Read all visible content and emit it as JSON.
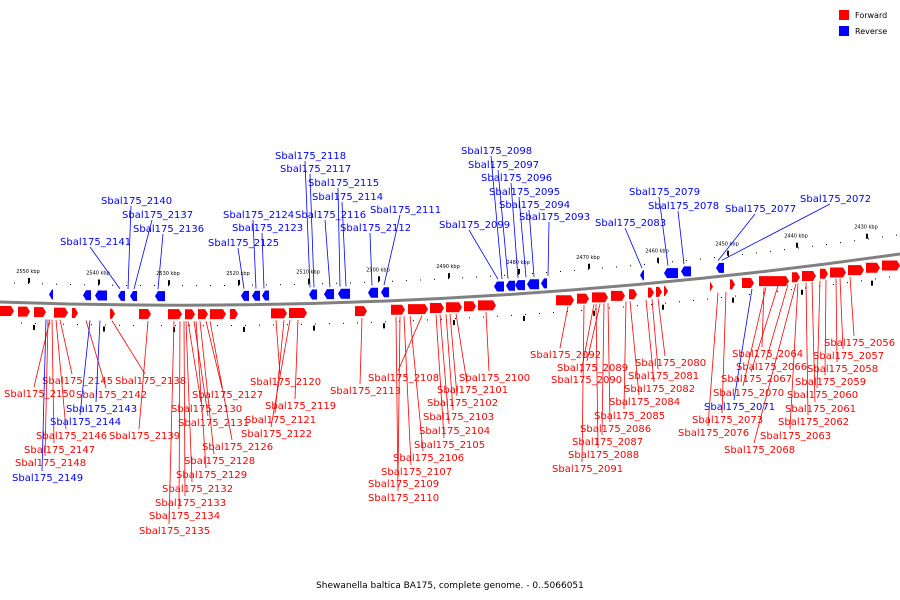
{
  "caption": "Shewanella baltica BA175, complete genome. - 0..5066051",
  "legend": {
    "forward": {
      "label": "Forward",
      "color": "#ff0000"
    },
    "reverse": {
      "label": "Reverse",
      "color": "#0000ff"
    }
  },
  "colors": {
    "forward": "#ff0000",
    "reverse": "#0000ff",
    "backbone": "#808080"
  },
  "ticks": [
    {
      "label": "2550 kbp"
    },
    {
      "label": "2540 kbp"
    },
    {
      "label": "2530 kbp"
    },
    {
      "label": "2520 kbp"
    },
    {
      "label": "2510 kbp"
    },
    {
      "label": "2500 kbp"
    },
    {
      "label": "2490 kbp"
    },
    {
      "label": "2480 kbp"
    },
    {
      "label": "2470 kbp"
    },
    {
      "label": "2460 kbp"
    },
    {
      "label": "2450 kbp"
    },
    {
      "label": "2440 kbp"
    },
    {
      "label": "2430 kbp"
    }
  ],
  "reverse_genes": [
    {
      "name": "Sbal175_2141"
    },
    {
      "name": "Sbal175_2140"
    },
    {
      "name": "Sbal175_2137"
    },
    {
      "name": "Sbal175_2136"
    },
    {
      "name": "Sbal175_2125"
    },
    {
      "name": "Sbal175_2124"
    },
    {
      "name": "Sbal175_2123"
    },
    {
      "name": "Sbal175_2118"
    },
    {
      "name": "Sbal175_2117"
    },
    {
      "name": "Sbal175_2116"
    },
    {
      "name": "Sbal175_2115"
    },
    {
      "name": "Sbal175_2114"
    },
    {
      "name": "Sbal175_2112"
    },
    {
      "name": "Sbal175_2111"
    },
    {
      "name": "Sbal175_2099"
    },
    {
      "name": "Sbal175_2098"
    },
    {
      "name": "Sbal175_2097"
    },
    {
      "name": "Sbal175_2096"
    },
    {
      "name": "Sbal175_2095"
    },
    {
      "name": "Sbal175_2094"
    },
    {
      "name": "Sbal175_2093"
    },
    {
      "name": "Sbal175_2083"
    },
    {
      "name": "Sbal175_2079"
    },
    {
      "name": "Sbal175_2078"
    },
    {
      "name": "Sbal175_2077"
    },
    {
      "name": "Sbal175_2072"
    }
  ],
  "forward_genes": [
    {
      "name": "Sbal175_2145",
      "strand": "forward"
    },
    {
      "name": "Sbal175_2150",
      "strand": "forward"
    },
    {
      "name": "Sbal175_2142",
      "strand": "forward"
    },
    {
      "name": "Sbal175_2143",
      "strand": "reverse"
    },
    {
      "name": "Sbal175_2144",
      "strand": "reverse"
    },
    {
      "name": "Sbal175_2146",
      "strand": "forward"
    },
    {
      "name": "Sbal175_2147",
      "strand": "forward"
    },
    {
      "name": "Sbal175_2148",
      "strand": "forward"
    },
    {
      "name": "Sbal175_2149",
      "strand": "reverse"
    },
    {
      "name": "Sbal175_2138",
      "strand": "forward"
    },
    {
      "name": "Sbal175_2139",
      "strand": "forward"
    },
    {
      "name": "Sbal175_2127",
      "strand": "forward"
    },
    {
      "name": "Sbal175_2130",
      "strand": "forward"
    },
    {
      "name": "Sbal175_2131",
      "strand": "forward"
    },
    {
      "name": "Sbal175_2126",
      "strand": "forward"
    },
    {
      "name": "Sbal175_2128",
      "strand": "forward"
    },
    {
      "name": "Sbal175_2129",
      "strand": "forward"
    },
    {
      "name": "Sbal175_2132",
      "strand": "forward"
    },
    {
      "name": "Sbal175_2133",
      "strand": "forward"
    },
    {
      "name": "Sbal175_2134",
      "strand": "forward"
    },
    {
      "name": "Sbal175_2135",
      "strand": "forward"
    },
    {
      "name": "Sbal175_2120",
      "strand": "forward"
    },
    {
      "name": "Sbal175_2119",
      "strand": "forward"
    },
    {
      "name": "Sbal175_2121",
      "strand": "forward"
    },
    {
      "name": "Sbal175_2122",
      "strand": "forward"
    },
    {
      "name": "Sbal175_2113",
      "strand": "forward"
    },
    {
      "name": "Sbal175_2108",
      "strand": "forward"
    },
    {
      "name": "Sbal175_2106",
      "strand": "forward"
    },
    {
      "name": "Sbal175_2107",
      "strand": "forward"
    },
    {
      "name": "Sbal175_2109",
      "strand": "forward"
    },
    {
      "name": "Sbal175_2110",
      "strand": "forward"
    },
    {
      "name": "Sbal175_2101",
      "strand": "forward"
    },
    {
      "name": "Sbal175_2102",
      "strand": "forward"
    },
    {
      "name": "Sbal175_2103",
      "strand": "forward"
    },
    {
      "name": "Sbal175_2104",
      "strand": "forward"
    },
    {
      "name": "Sbal175_2105",
      "strand": "forward"
    },
    {
      "name": "Sbal175_2100",
      "strand": "forward"
    },
    {
      "name": "Sbal175_2092",
      "strand": "forward"
    },
    {
      "name": "Sbal175_2089",
      "strand": "forward"
    },
    {
      "name": "Sbal175_2090",
      "strand": "forward"
    },
    {
      "name": "Sbal175_2085",
      "strand": "forward"
    },
    {
      "name": "Sbal175_2086",
      "strand": "forward"
    },
    {
      "name": "Sbal175_2087",
      "strand": "forward"
    },
    {
      "name": "Sbal175_2088",
      "strand": "forward"
    },
    {
      "name": "Sbal175_2091",
      "strand": "forward"
    },
    {
      "name": "Sbal175_2084",
      "strand": "forward"
    },
    {
      "name": "Sbal175_2082",
      "strand": "forward"
    },
    {
      "name": "Sbal175_2081",
      "strand": "forward"
    },
    {
      "name": "Sbal175_2080",
      "strand": "forward"
    },
    {
      "name": "Sbal175_2064",
      "strand": "forward"
    },
    {
      "name": "Sbal175_2066",
      "strand": "forward"
    },
    {
      "name": "Sbal175_2067",
      "strand": "forward"
    },
    {
      "name": "Sbal175_2070",
      "strand": "forward"
    },
    {
      "name": "Sbal175_2071",
      "strand": "reverse"
    },
    {
      "name": "Sbal175_2073",
      "strand": "forward"
    },
    {
      "name": "Sbal175_2076",
      "strand": "forward"
    },
    {
      "name": "Sbal175_2068",
      "strand": "forward"
    },
    {
      "name": "Sbal175_2056",
      "strand": "forward"
    },
    {
      "name": "Sbal175_2057",
      "strand": "forward"
    },
    {
      "name": "Sbal175_2058",
      "strand": "forward"
    },
    {
      "name": "Sbal175_2059",
      "strand": "forward"
    },
    {
      "name": "Sbal175_2060",
      "strand": "forward"
    },
    {
      "name": "Sbal175_2061",
      "strand": "forward"
    },
    {
      "name": "Sbal175_2062",
      "strand": "forward"
    },
    {
      "name": "Sbal175_2063",
      "strand": "forward"
    }
  ]
}
